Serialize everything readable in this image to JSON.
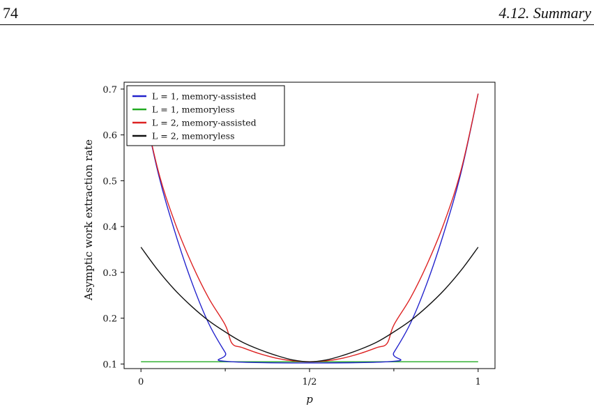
{
  "header": {
    "page_number": "74",
    "section_title": "4.12. Summary"
  },
  "chart_data": {
    "type": "line",
    "title": "",
    "xlabel": "p",
    "ylabel": "Asymptic work extraction rate",
    "xlim": [
      -0.05,
      1.05
    ],
    "ylim": [
      0.09,
      0.715
    ],
    "x_ticks": [
      0,
      0.5,
      1
    ],
    "x_tick_labels": [
      "0",
      "1/2",
      "1"
    ],
    "x_minor_ticks": [
      0.25,
      0.75
    ],
    "y_ticks": [
      0.1,
      0.2,
      0.3,
      0.4,
      0.5,
      0.6,
      0.7
    ],
    "y_tick_labels": [
      "0.1",
      "0.2",
      "0.3",
      "0.4",
      "0.5",
      "0.6",
      "0.7"
    ],
    "grid": false,
    "legend_position": "top-left",
    "series": [
      {
        "name": "L = 1, memory-assisted",
        "color": "#2222cc",
        "x": [
          0.0,
          0.05,
          0.1,
          0.15,
          0.2,
          0.25,
          0.27,
          0.73,
          0.75,
          0.8,
          0.85,
          0.9,
          0.95,
          1.0
        ],
        "y": [
          0.69,
          0.52,
          0.39,
          0.28,
          0.19,
          0.125,
          0.105,
          0.105,
          0.125,
          0.19,
          0.28,
          0.39,
          0.52,
          0.69
        ]
      },
      {
        "name": "L = 1, memoryless",
        "color": "#22aa22",
        "x": [
          0.0,
          1.0
        ],
        "y": [
          0.105,
          0.105
        ]
      },
      {
        "name": "L = 2, memory-assisted",
        "color": "#dd2222",
        "x": [
          0.0,
          0.05,
          0.1,
          0.15,
          0.2,
          0.25,
          0.27,
          0.3,
          0.35,
          0.4,
          0.45,
          0.5,
          0.55,
          0.6,
          0.65,
          0.7,
          0.73,
          0.75,
          0.8,
          0.85,
          0.9,
          0.95,
          1.0
        ],
        "y": [
          0.69,
          0.525,
          0.41,
          0.32,
          0.245,
          0.185,
          0.145,
          0.136,
          0.123,
          0.113,
          0.107,
          0.105,
          0.107,
          0.113,
          0.123,
          0.136,
          0.145,
          0.185,
          0.245,
          0.32,
          0.41,
          0.525,
          0.69
        ]
      },
      {
        "name": "L = 2, memoryless",
        "color": "#111111",
        "x": [
          0.0,
          0.05,
          0.1,
          0.15,
          0.2,
          0.25,
          0.3,
          0.35,
          0.4,
          0.45,
          0.5,
          0.55,
          0.6,
          0.65,
          0.7,
          0.75,
          0.8,
          0.85,
          0.9,
          0.95,
          1.0
        ],
        "y": [
          0.355,
          0.305,
          0.262,
          0.226,
          0.195,
          0.17,
          0.148,
          0.132,
          0.119,
          0.109,
          0.105,
          0.109,
          0.119,
          0.132,
          0.148,
          0.17,
          0.195,
          0.226,
          0.262,
          0.305,
          0.355
        ]
      }
    ]
  }
}
